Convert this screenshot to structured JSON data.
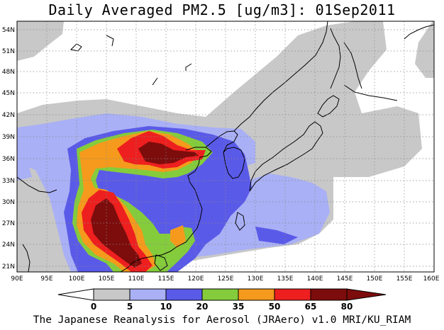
{
  "map": {
    "title": "Daily Averaged PM2.5 [ug/m3]: 01Sep2011",
    "credit": "The Japanese Reanalysis for Aerosol (JRAero) v1.0 MRI/KU_RIAM",
    "lat_labels": [
      "54N",
      "51N",
      "48N",
      "45N",
      "42N",
      "39N",
      "36N",
      "33N",
      "30N",
      "27N",
      "24N",
      "21N"
    ],
    "lon_labels": [
      "90E",
      "95E",
      "100E",
      "105E",
      "110E",
      "115E",
      "120E",
      "125E",
      "130E",
      "135E",
      "140E",
      "145E",
      "150E",
      "155E",
      "160E"
    ],
    "colorbar": {
      "levels": [
        "0",
        "5",
        "10",
        "20",
        "35",
        "50",
        "65",
        "80"
      ],
      "colors": [
        "#ffffff",
        "#c8c8c8",
        "#a9b0f5",
        "#5a5ae8",
        "#84cc3c",
        "#f59a1c",
        "#ee1f1f",
        "#7d0c0c"
      ]
    }
  }
}
